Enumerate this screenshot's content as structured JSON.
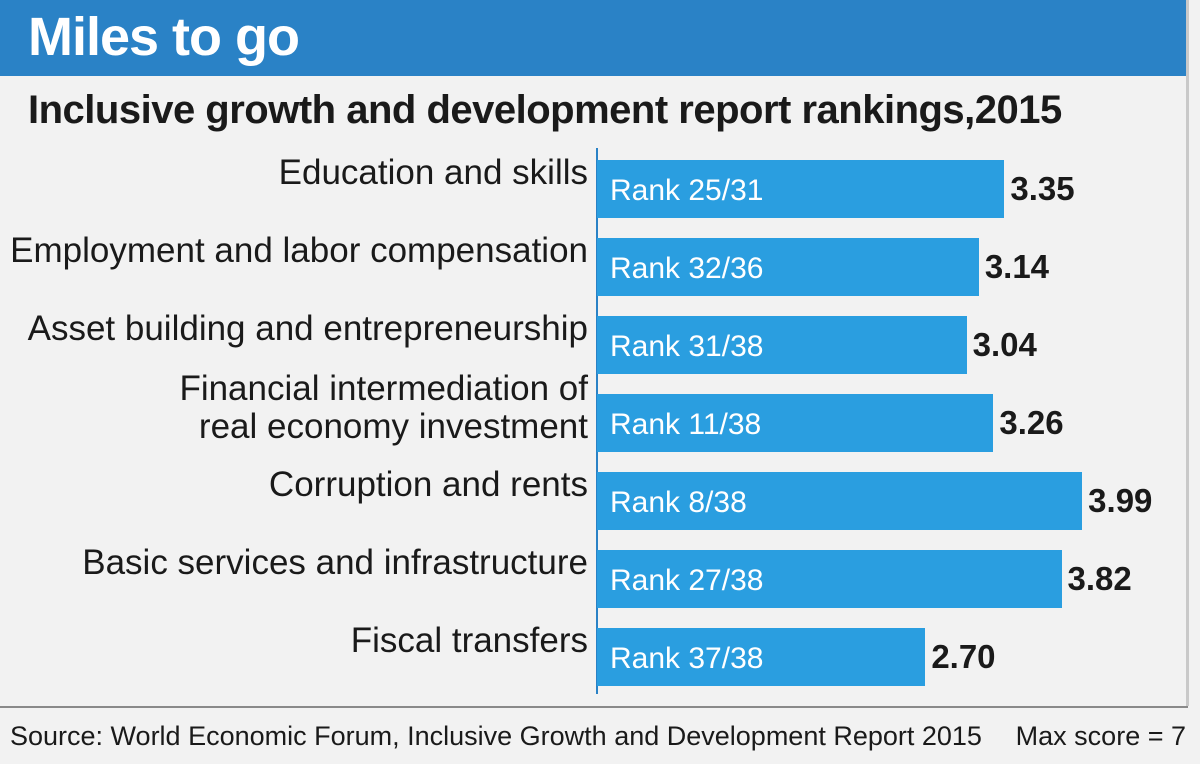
{
  "header": {
    "title": "Miles to go"
  },
  "chart_data": {
    "type": "bar",
    "orientation": "horizontal",
    "title": "Inclusive growth and development report  rankings,2015",
    "categories": [
      "Education and skills",
      "Employment and labor compensation",
      "Asset building and entrepreneurship",
      "Financial intermediation of\nreal economy investment",
      "Corruption and rents",
      "Basic services and infrastructure",
      "Fiscal transfers"
    ],
    "values": [
      3.35,
      3.14,
      3.04,
      3.26,
      3.99,
      3.82,
      2.7
    ],
    "value_labels": [
      "3.35",
      "3.14",
      "3.04",
      "3.26",
      "3.99",
      "3.82",
      "2.70"
    ],
    "rank_labels": [
      "Rank 25/31",
      "Rank 32/36",
      "Rank 31/38",
      "Rank 11/38",
      "Rank 8/38",
      "Rank 27/38",
      "Rank 37/38"
    ],
    "bar_color": "#2a9ee0"
  },
  "footer": {
    "source": "Source: World Economic Forum, Inclusive Growth and Development Report 2015",
    "max_score": "Max score = 7"
  },
  "colors": {
    "header_bg": "#2a82c6",
    "bar": "#2a9ee0",
    "background": "#f2f2f2"
  }
}
